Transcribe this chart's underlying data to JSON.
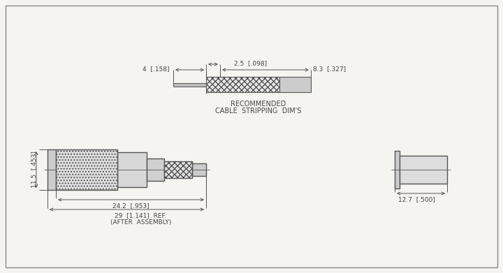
{
  "bg_color": "#f5f4f0",
  "line_color": "#555555",
  "text_color": "#444444",
  "cable_strip_label1": "RECOMMENDED",
  "cable_strip_label2": "CABLE  STRIPPING  DIM'S",
  "dim_25_098": "2.5  [.098]",
  "dim_4_158": "4  [.158]",
  "dim_83_327": "8.3  [.327]",
  "dim_115_453": "11.5  [.453]",
  "dim_242_953": "24.2  [.953]",
  "dim_29_1141": "29  [1.141]  REF.",
  "dim_after_assembly": "(AFTER  ASSEMBLY)",
  "dim_127_500": "12.7  [.500]"
}
